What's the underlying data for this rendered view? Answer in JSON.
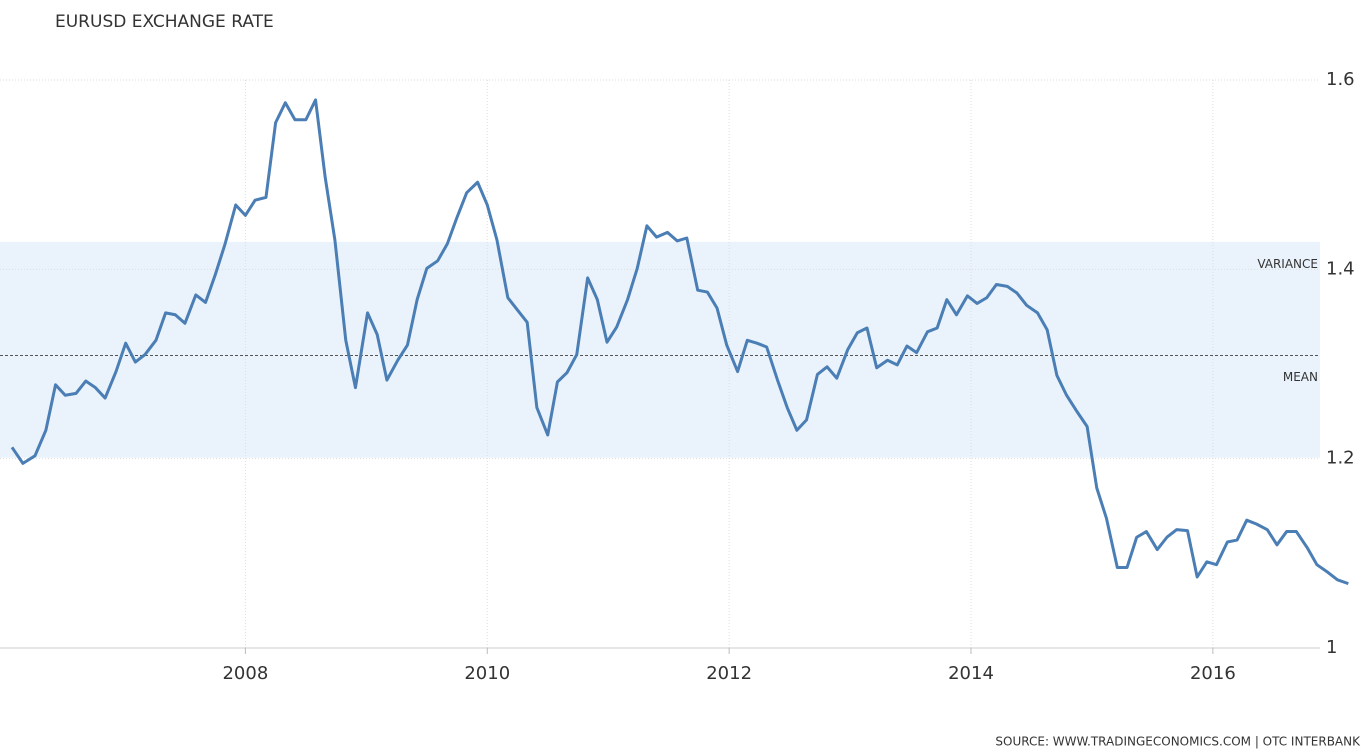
{
  "chart_data": {
    "type": "line",
    "title": "EURUSD EXCHANGE RATE",
    "source": "SOURCE: WWW.TRADINGECONOMICS.COM | OTC INTERBANK",
    "x": [
      2006.07,
      2006.16,
      2006.26,
      2006.35,
      2006.43,
      2006.51,
      2006.6,
      2006.68,
      2006.76,
      2006.84,
      2006.93,
      2007.01,
      2007.09,
      2007.17,
      2007.26,
      2007.34,
      2007.42,
      2007.5,
      2007.59,
      2007.67,
      2007.75,
      2007.83,
      2007.92,
      2008.0,
      2008.08,
      2008.17,
      2008.25,
      2008.33,
      2008.41,
      2008.5,
      2008.58,
      2008.66,
      2008.74,
      2008.83,
      2008.91,
      2009.01,
      2009.09,
      2009.17,
      2009.26,
      2009.34,
      2009.42,
      2009.5,
      2009.59,
      2009.67,
      2009.75,
      2009.83,
      2009.92,
      2010.0,
      2010.08,
      2010.17,
      2010.25,
      2010.33,
      2010.41,
      2010.5,
      2010.58,
      2010.66,
      2010.74,
      2010.83,
      2010.91,
      2010.99,
      2011.07,
      2011.16,
      2011.24,
      2011.32,
      2011.4,
      2011.49,
      2011.57,
      2011.65,
      2011.74,
      2011.82,
      2011.9,
      2011.98,
      2012.07,
      2012.15,
      2012.23,
      2012.31,
      2012.4,
      2012.48,
      2012.56,
      2012.64,
      2012.73,
      2012.81,
      2012.89,
      2012.98,
      2013.06,
      2013.14,
      2013.22,
      2013.31,
      2013.39,
      2013.47,
      2013.55,
      2013.64,
      2013.72,
      2013.8,
      2013.88,
      2013.97,
      2014.05,
      2014.13,
      2014.21,
      2014.3,
      2014.38,
      2014.46,
      2014.55,
      2014.63,
      2014.71,
      2014.79,
      2014.88,
      2014.96,
      2015.04,
      2015.12,
      2015.21,
      2015.29,
      2015.37,
      2015.45,
      2015.54,
      2015.62,
      2015.7,
      2015.79,
      2015.87,
      2015.95,
      2016.03,
      2016.12,
      2016.2,
      2016.28,
      2016.36,
      2016.45,
      2016.53,
      2016.61,
      2016.69,
      2016.78,
      2016.86,
      2016.95,
      2017.03,
      2017.12
    ],
    "series": [
      {
        "name": "EURUSD",
        "color": "#4a7eb5",
        "values": [
          1.212,
          1.195,
          1.203,
          1.23,
          1.278,
          1.267,
          1.269,
          1.282,
          1.275,
          1.264,
          1.292,
          1.322,
          1.302,
          1.31,
          1.325,
          1.354,
          1.352,
          1.343,
          1.373,
          1.365,
          1.394,
          1.426,
          1.468,
          1.457,
          1.473,
          1.476,
          1.555,
          1.576,
          1.558,
          1.558,
          1.579,
          1.497,
          1.431,
          1.325,
          1.275,
          1.354,
          1.331,
          1.283,
          1.304,
          1.32,
          1.368,
          1.401,
          1.409,
          1.427,
          1.455,
          1.481,
          1.492,
          1.468,
          1.431,
          1.37,
          1.357,
          1.344,
          1.254,
          1.225,
          1.281,
          1.291,
          1.31,
          1.391,
          1.368,
          1.323,
          1.339,
          1.368,
          1.401,
          1.446,
          1.434,
          1.439,
          1.43,
          1.433,
          1.378,
          1.376,
          1.359,
          1.32,
          1.292,
          1.325,
          1.322,
          1.318,
          1.283,
          1.254,
          1.23,
          1.241,
          1.289,
          1.297,
          1.285,
          1.315,
          1.333,
          1.338,
          1.296,
          1.304,
          1.299,
          1.319,
          1.312,
          1.334,
          1.338,
          1.368,
          1.352,
          1.372,
          1.364,
          1.37,
          1.384,
          1.382,
          1.375,
          1.362,
          1.354,
          1.336,
          1.288,
          1.267,
          1.249,
          1.234,
          1.169,
          1.137,
          1.085,
          1.085,
          1.117,
          1.123,
          1.104,
          1.117,
          1.125,
          1.124,
          1.075,
          1.091,
          1.088,
          1.112,
          1.114,
          1.135,
          1.131,
          1.125,
          1.109,
          1.123,
          1.123,
          1.106,
          1.088,
          1.08,
          1.072,
          1.068
        ]
      }
    ],
    "xlim": [
      2006.07,
      2017.2
    ],
    "xticks": [
      2008,
      2010,
      2012,
      2014,
      2016
    ],
    "ylim": [
      1,
      1.6
    ],
    "yticks": [
      1.6,
      1.4,
      1.2,
      1
    ],
    "grid": true,
    "variance": {
      "label": "VARIANCE",
      "range": [
        1.201,
        1.429
      ]
    },
    "mean": {
      "label": "MEAN",
      "value": 1.309
    }
  }
}
